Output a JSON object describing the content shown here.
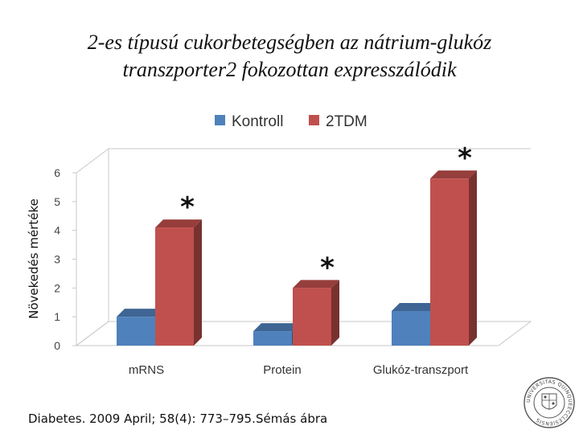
{
  "slide": {
    "title_line1": "2-es típusú cukorbetegségben az nátrium-glukóz",
    "title_line2": "transzporter2  fokozottan expresszálódik",
    "citation": "Diabetes. 2009 April; 58(4): 773–795.",
    "credit": "Sémás ábra",
    "seal_text": "UNIVERSITAS QUINQUEECCLESIENSIS"
  },
  "colors": {
    "kontroll": "#4F81BD",
    "tdm": "#C0504D"
  },
  "chart_data": {
    "type": "bar",
    "categories": [
      "mRNS",
      "Protein",
      "Glukóz-transzport"
    ],
    "series": [
      {
        "name": "Kontroll",
        "values": [
          1.0,
          0.5,
          1.2
        ]
      },
      {
        "name": "2TDM",
        "values": [
          4.1,
          2.0,
          5.8
        ]
      }
    ],
    "ylabel": "Növekedés mértéke",
    "ylim": [
      0,
      6
    ],
    "yticks": [
      "0",
      "1",
      "2",
      "3",
      "4",
      "5",
      "6"
    ],
    "significance_marks": [
      "*",
      "*",
      "*"
    ],
    "legend_position": "top",
    "grid": false,
    "style": "3d"
  }
}
